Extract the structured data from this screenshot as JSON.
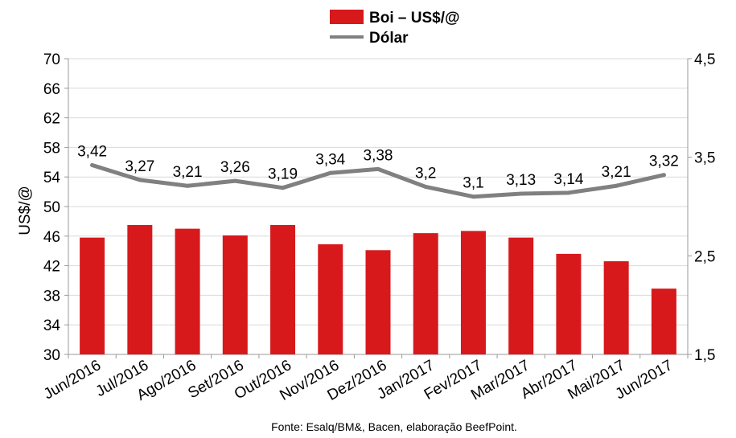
{
  "chart_data": {
    "type": "bar+line",
    "categories": [
      "Jun/2016",
      "Jul/2016",
      "Ago/2016",
      "Set/2016",
      "Out/2016",
      "Nov/2016",
      "Dez/2016",
      "Jan/2017",
      "Fev/2017",
      "Mar/2017",
      "Abr/2017",
      "Mai/2017",
      "Jun/2017"
    ],
    "series": [
      {
        "name": "Boi – US$/@",
        "type": "bar",
        "axis": "left",
        "color": "#d7191c",
        "values": [
          45.8,
          47.5,
          47.0,
          46.1,
          47.5,
          44.9,
          44.1,
          46.4,
          46.7,
          45.8,
          43.6,
          42.6,
          38.9
        ]
      },
      {
        "name": "Dólar",
        "type": "line",
        "axis": "right",
        "color": "#808080",
        "values": [
          3.42,
          3.27,
          3.21,
          3.26,
          3.19,
          3.34,
          3.38,
          3.2,
          3.1,
          3.13,
          3.14,
          3.21,
          3.32
        ],
        "labels": [
          "3,42",
          "3,27",
          "3,21",
          "3,26",
          "3,19",
          "3,34",
          "3,38",
          "3,2",
          "3,1",
          "3,13",
          "3,14",
          "3,21",
          "3,32"
        ]
      }
    ],
    "ylabel": "US$/@",
    "ylim": [
      30,
      70
    ],
    "yticks": [
      "30",
      "34",
      "38",
      "42",
      "46",
      "50",
      "54",
      "58",
      "62",
      "66",
      "70"
    ],
    "y2lim": [
      1.5,
      4.5
    ],
    "y2ticks": [
      "1,5",
      "2,5",
      "3,5",
      "4,5"
    ],
    "grid": true,
    "legend": "top-center",
    "source": "Fonte: Esalq/BM&, Bacen, elaboração BeefPoint."
  }
}
